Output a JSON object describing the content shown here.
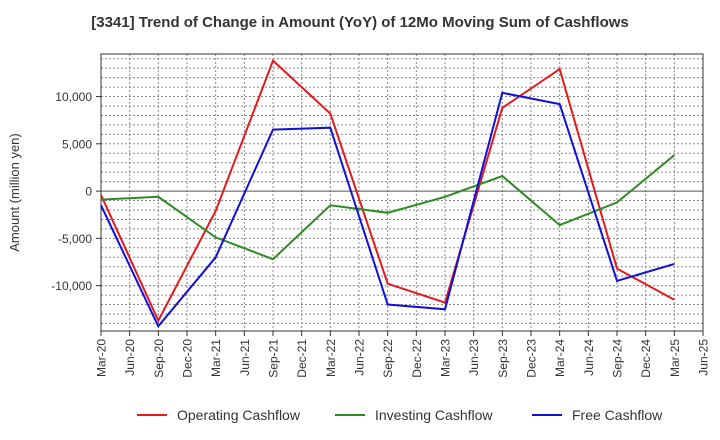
{
  "chart_data": {
    "type": "line",
    "title": "[3341]  Trend of Change in Amount (YoY) of 12Mo Moving Sum of Cashflows",
    "xlabel": "",
    "ylabel": "Amount (million yen)",
    "ylim": [
      -14800,
      14500
    ],
    "yticks": [
      10000,
      5000,
      0,
      -5000,
      -10000
    ],
    "ytick_labels": [
      "10,000",
      "5,000",
      "0",
      "-5,000",
      "-10,000"
    ],
    "categories": [
      "Mar-20",
      "Jun-20",
      "Sep-20",
      "Dec-20",
      "Mar-21",
      "Jun-21",
      "Sep-21",
      "Dec-21",
      "Mar-22",
      "Jun-22",
      "Sep-22",
      "Dec-22",
      "Mar-23",
      "Jun-23",
      "Sep-23",
      "Dec-23",
      "Mar-24",
      "Jun-24",
      "Sep-24",
      "Dec-24",
      "Mar-25",
      "Jun-25"
    ],
    "grid": true,
    "legend_position": "bottom",
    "series": [
      {
        "name": "Operating Cashflow",
        "color": "#e41a1c",
        "values": [
          -400,
          null,
          -13700,
          null,
          -2100,
          null,
          13800,
          null,
          8200,
          null,
          -9800,
          null,
          -11800,
          null,
          8800,
          null,
          12900,
          null,
          -8200,
          null,
          -11500,
          null
        ]
      },
      {
        "name": "Investing Cashflow",
        "color": "#2e8b22",
        "values": [
          -900,
          null,
          -600,
          null,
          -4900,
          null,
          -7200,
          null,
          -1500,
          null,
          -2300,
          null,
          -600,
          null,
          1600,
          null,
          -3600,
          null,
          -1200,
          null,
          3800,
          null
        ]
      },
      {
        "name": "Free Cashflow",
        "color": "#1010d8",
        "values": [
          -1500,
          null,
          -14300,
          null,
          -7000,
          null,
          6500,
          null,
          6700,
          null,
          -12000,
          null,
          -12500,
          null,
          10400,
          null,
          9200,
          null,
          -9500,
          null,
          -7700,
          null
        ]
      }
    ]
  }
}
